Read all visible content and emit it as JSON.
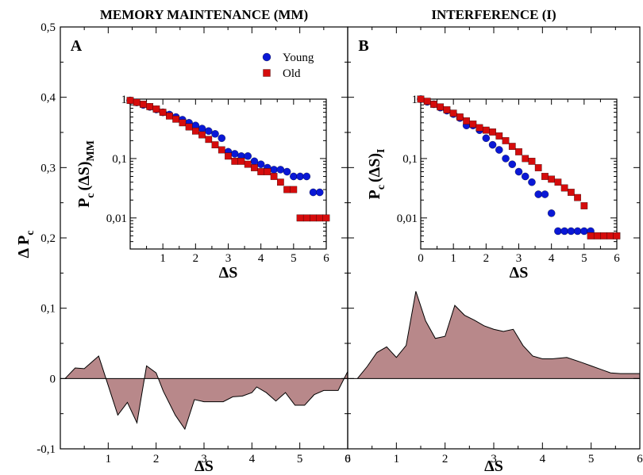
{
  "chart_data": [
    {
      "type": "area",
      "panel": "A",
      "title": "MEMORY MAINTENANCE (MM)",
      "xlabel": "ΔS",
      "ylabel": "Δ P",
      "ylabel_sub": "c",
      "xlim": [
        0,
        6
      ],
      "ylim": [
        -0.1,
        0.5
      ],
      "xticks": [
        0,
        1,
        2,
        3,
        4,
        5,
        6
      ],
      "xtick_labels": [
        "",
        "1",
        "2",
        "3",
        "4",
        "5",
        "6"
      ],
      "yticks": [
        -0.1,
        0,
        0.1,
        0.2,
        0.3,
        0.4,
        0.5
      ],
      "ytick_labels": [
        "-0,1",
        "0",
        "0,1",
        "0,2",
        "0,3",
        "0,4",
        "0,5"
      ],
      "fill_color": "#b8888a",
      "x": [
        0.1,
        0.31,
        0.5,
        0.8,
        1.0,
        1.2,
        1.4,
        1.6,
        1.8,
        2.0,
        2.15,
        2.4,
        2.6,
        2.8,
        3.0,
        3.2,
        3.4,
        3.6,
        3.8,
        4.0,
        4.1,
        4.3,
        4.5,
        4.7,
        4.9,
        5.1,
        5.3,
        5.5,
        5.8,
        6.0
      ],
      "y": [
        0.0,
        0.015,
        0.014,
        0.032,
        -0.01,
        -0.052,
        -0.034,
        -0.063,
        0.018,
        0.008,
        -0.018,
        -0.052,
        -0.072,
        -0.03,
        -0.033,
        -0.033,
        -0.033,
        -0.026,
        -0.025,
        -0.02,
        -0.012,
        -0.02,
        -0.032,
        -0.02,
        -0.038,
        -0.038,
        -0.023,
        -0.017,
        -0.017,
        0.01
      ],
      "inset": {
        "type": "scatter",
        "ylabel": "P",
        "ylabel_sub": "c",
        "ylabel_expr": "(ΔS)",
        "ylabel_expr_sub": "MM",
        "xlabel": "ΔS",
        "xlim": [
          0,
          6
        ],
        "ylim_log": [
          0.003,
          1
        ],
        "log_y": true,
        "xticks": [
          1,
          2,
          3,
          4,
          5,
          6
        ],
        "xtick_labels": [
          "1",
          "2",
          "3",
          "4",
          "5",
          "6"
        ],
        "yticks": [
          0.01,
          0.1,
          1
        ],
        "ytick_labels": [
          "0,01",
          "0,1",
          "1"
        ],
        "series": [
          {
            "name": "Young",
            "marker": "circle",
            "color": "#0a18d6",
            "x": [
              0.0,
              0.2,
              0.4,
              0.6,
              0.8,
              1.0,
              1.2,
              1.4,
              1.6,
              1.8,
              2.0,
              2.2,
              2.4,
              2.6,
              2.8,
              3.0,
              3.2,
              3.4,
              3.6,
              3.8,
              4.0,
              4.2,
              4.4,
              4.6,
              4.8,
              5.0,
              5.2,
              5.4,
              5.6,
              5.8
            ],
            "y": [
              0.95,
              0.88,
              0.8,
              0.74,
              0.67,
              0.6,
              0.55,
              0.5,
              0.45,
              0.4,
              0.36,
              0.32,
              0.29,
              0.26,
              0.22,
              0.13,
              0.12,
              0.11,
              0.11,
              0.09,
              0.08,
              0.07,
              0.065,
              0.065,
              0.06,
              0.05,
              0.05,
              0.05,
              0.027,
              0.027
            ]
          },
          {
            "name": "Old",
            "marker": "square",
            "color": "#d50c0c",
            "x": [
              0.0,
              0.2,
              0.4,
              0.6,
              0.8,
              1.0,
              1.2,
              1.4,
              1.6,
              1.8,
              2.0,
              2.2,
              2.4,
              2.6,
              2.8,
              3.0,
              3.2,
              3.4,
              3.6,
              3.8,
              4.0,
              4.2,
              4.4,
              4.6,
              4.8,
              5.0,
              5.2,
              5.4,
              5.6,
              5.8,
              6.0
            ],
            "y": [
              0.95,
              0.88,
              0.82,
              0.75,
              0.68,
              0.6,
              0.52,
              0.46,
              0.4,
              0.34,
              0.29,
              0.25,
              0.21,
              0.17,
              0.14,
              0.11,
              0.09,
              0.09,
              0.08,
              0.07,
              0.06,
              0.06,
              0.05,
              0.04,
              0.03,
              0.03,
              0.01,
              0.01,
              0.01,
              0.01,
              0.01
            ]
          }
        ]
      }
    },
    {
      "type": "area",
      "panel": "B",
      "title": "INTERFERENCE (I)",
      "xlabel": "ΔS",
      "xlim": [
        0,
        6
      ],
      "ylim": [
        -0.1,
        0.5
      ],
      "xticks": [
        0,
        1,
        2,
        3,
        4,
        5,
        6
      ],
      "xtick_labels": [
        "0",
        "1",
        "2",
        "3",
        "4",
        "5",
        "6"
      ],
      "fill_color": "#b8888a",
      "x": [
        0.2,
        0.4,
        0.6,
        0.8,
        1.0,
        1.2,
        1.4,
        1.6,
        1.8,
        2.0,
        2.2,
        2.4,
        2.6,
        2.8,
        3.0,
        3.2,
        3.4,
        3.6,
        3.8,
        4.0,
        4.2,
        4.5,
        4.8,
        5.0,
        5.2,
        5.4,
        5.6,
        6.0
      ],
      "y": [
        0.0,
        0.017,
        0.037,
        0.045,
        0.03,
        0.047,
        0.124,
        0.082,
        0.057,
        0.06,
        0.104,
        0.09,
        0.083,
        0.075,
        0.07,
        0.067,
        0.07,
        0.047,
        0.032,
        0.028,
        0.028,
        0.03,
        0.023,
        0.018,
        0.013,
        0.008,
        0.007,
        0.007
      ],
      "inset": {
        "type": "scatter",
        "ylabel": "P",
        "ylabel_sub": "c",
        "ylabel_expr": "(ΔS)",
        "ylabel_expr_sub": "I",
        "xlabel": "ΔS",
        "xlim": [
          0,
          6
        ],
        "ylim_log": [
          0.003,
          1
        ],
        "log_y": true,
        "xticks": [
          0,
          1,
          2,
          3,
          4,
          5,
          6
        ],
        "xtick_labels": [
          "0",
          "1",
          "2",
          "3",
          "4",
          "5",
          "6"
        ],
        "yticks": [
          0.01,
          0.1,
          1
        ],
        "ytick_labels": [
          "0,01",
          "0,1",
          "1"
        ],
        "series": [
          {
            "name": "Young",
            "marker": "circle",
            "color": "#0a18d6",
            "x": [
              0.0,
              0.2,
              0.4,
              0.6,
              0.8,
              1.0,
              1.2,
              1.4,
              1.6,
              1.8,
              2.0,
              2.2,
              2.4,
              2.6,
              2.8,
              3.0,
              3.2,
              3.4,
              3.6,
              3.8,
              4.0,
              4.2,
              4.4,
              4.6,
              4.8,
              5.0,
              5.2
            ],
            "y": [
              1.0,
              0.9,
              0.82,
              0.72,
              0.64,
              0.56,
              0.48,
              0.36,
              0.36,
              0.3,
              0.22,
              0.17,
              0.14,
              0.1,
              0.08,
              0.06,
              0.05,
              0.04,
              0.025,
              0.025,
              0.012,
              0.006,
              0.006,
              0.006,
              0.006,
              0.006,
              0.006
            ]
          },
          {
            "name": "Old",
            "marker": "square",
            "color": "#d50c0c",
            "x": [
              0.0,
              0.2,
              0.4,
              0.6,
              0.8,
              1.0,
              1.2,
              1.4,
              1.6,
              1.8,
              2.0,
              2.2,
              2.4,
              2.6,
              2.8,
              3.0,
              3.2,
              3.4,
              3.6,
              3.8,
              4.0,
              4.2,
              4.4,
              4.6,
              4.8,
              5.0,
              5.2,
              5.4,
              5.6,
              5.8,
              6.0
            ],
            "y": [
              1.0,
              0.92,
              0.82,
              0.74,
              0.66,
              0.58,
              0.5,
              0.43,
              0.38,
              0.33,
              0.3,
              0.28,
              0.24,
              0.2,
              0.16,
              0.13,
              0.1,
              0.09,
              0.07,
              0.05,
              0.045,
              0.04,
              0.032,
              0.027,
              0.022,
              0.016,
              0.005,
              0.005,
              0.005,
              0.005,
              0.005
            ]
          }
        ]
      }
    }
  ],
  "legend": {
    "placement": "top-right of panel A inset",
    "entries": [
      {
        "label": "Young",
        "marker": "circle",
        "color": "#0a18d6"
      },
      {
        "label": "Old",
        "marker": "square",
        "color": "#d50c0c"
      }
    ]
  }
}
